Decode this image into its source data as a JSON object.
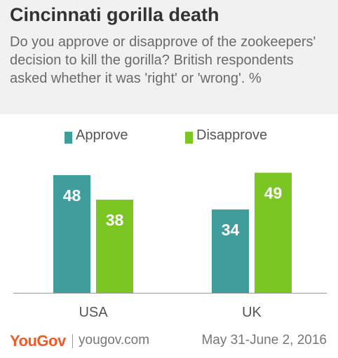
{
  "header": {
    "title": "Cincinnati gorilla death",
    "subtitle": "Do you approve or disapprove of the zookeepers' decision to kill the gorilla? British respondents asked whether it was 'right' or 'wrong'. %"
  },
  "legend": [
    {
      "label": "Approve",
      "color": "#3f9e9b"
    },
    {
      "label": "Disapprove",
      "color": "#7cc623"
    }
  ],
  "chart_data": {
    "type": "bar",
    "categories": [
      "USA",
      "UK"
    ],
    "series": [
      {
        "name": "Approve",
        "values": [
          48,
          34
        ],
        "color": "#3f9e9b"
      },
      {
        "name": "Disapprove",
        "values": [
          38,
          49
        ],
        "color": "#7cc623"
      }
    ],
    "title": "Cincinnati gorilla death",
    "xlabel": "",
    "ylabel": "",
    "ylim": [
      0,
      50
    ],
    "grid": false,
    "legend_position": "top"
  },
  "footer": {
    "logo": "YouGov",
    "site": "yougov.com",
    "dates": "May 31-June 2, 2016"
  }
}
